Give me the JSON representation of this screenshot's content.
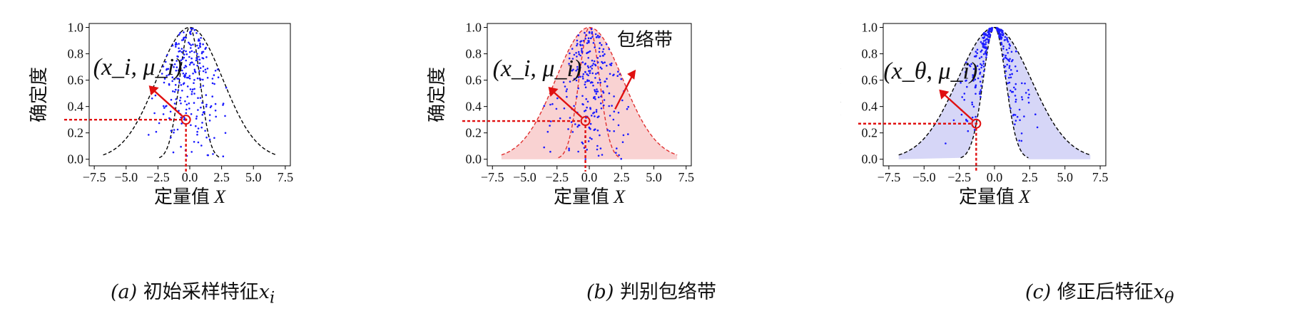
{
  "chart_data": [
    {
      "type": "scatter",
      "panel_label": "(a)",
      "caption": "初始采样特征",
      "caption_var": "x",
      "caption_sub": "i",
      "xlabel": "定量值",
      "xlabel_var": "X",
      "ylabel": "确定度",
      "xticks": [
        "−7.5",
        "−5.0",
        "−2.5",
        "0.0",
        "2.5",
        "5.0",
        "7.5"
      ],
      "yticks": [
        "0.0",
        "0.2",
        "0.4",
        "0.6",
        "0.8",
        "1.0"
      ],
      "xlim": [
        -7.5,
        7.5
      ],
      "ylim": [
        0,
        1.0
      ],
      "outer_curve_sigma": 2.6,
      "inner_curve_sigma": 0.8,
      "fill": "none",
      "annotation_label": "(x_i, μ_i)",
      "annotation_point": [
        -0.3,
        0.3
      ],
      "envelope_label": "",
      "point_color": "#1a1aff",
      "seed": 11
    },
    {
      "type": "scatter",
      "panel_label": "(b)",
      "caption": "判别包络带",
      "caption_var": "",
      "caption_sub": "",
      "xlabel": "定量值",
      "xlabel_var": "X",
      "ylabel": "确定度",
      "xticks": [
        "−7.5",
        "−5.0",
        "−2.5",
        "0.0",
        "2.5",
        "5.0",
        "7.5"
      ],
      "yticks": [
        "0.0",
        "0.2",
        "0.4",
        "0.6",
        "0.8",
        "1.0"
      ],
      "xlim": [
        -7.5,
        7.5
      ],
      "ylim": [
        0,
        1.0
      ],
      "outer_curve_sigma": 2.6,
      "inner_curve_sigma": 0.8,
      "fill": "#f9d2d2",
      "curve_color": "#e03030",
      "annotation_label": "(x_i, μ_i)",
      "annotation_point": [
        -0.3,
        0.29
      ],
      "envelope_label": "包络带",
      "point_color": "#1a1aff",
      "seed": 23
    },
    {
      "type": "scatter",
      "panel_label": "(c)",
      "caption": "修正后特征",
      "caption_var": "x",
      "caption_sub": "θ",
      "xlabel": "定量值",
      "xlabel_var": "X",
      "ylabel": "确定度",
      "xticks": [
        "−7.5",
        "−5.0",
        "−2.5",
        "0.0",
        "2.5",
        "5.0",
        "7.5"
      ],
      "yticks": [
        "0.0",
        "0.2",
        "0.4",
        "0.6",
        "0.8",
        "1.0"
      ],
      "xlim": [
        -7.5,
        7.5
      ],
      "ylim": [
        0,
        1.0
      ],
      "outer_curve_sigma": 2.6,
      "inner_curve_sigma": 0.8,
      "fill": "#d6d6f7",
      "curve_color": "#000000",
      "annotation_label": "(x_θ, μ_i)",
      "annotation_point": [
        -1.3,
        0.27
      ],
      "envelope_label": "",
      "point_color": "#1a1aff",
      "seed": 37
    }
  ]
}
